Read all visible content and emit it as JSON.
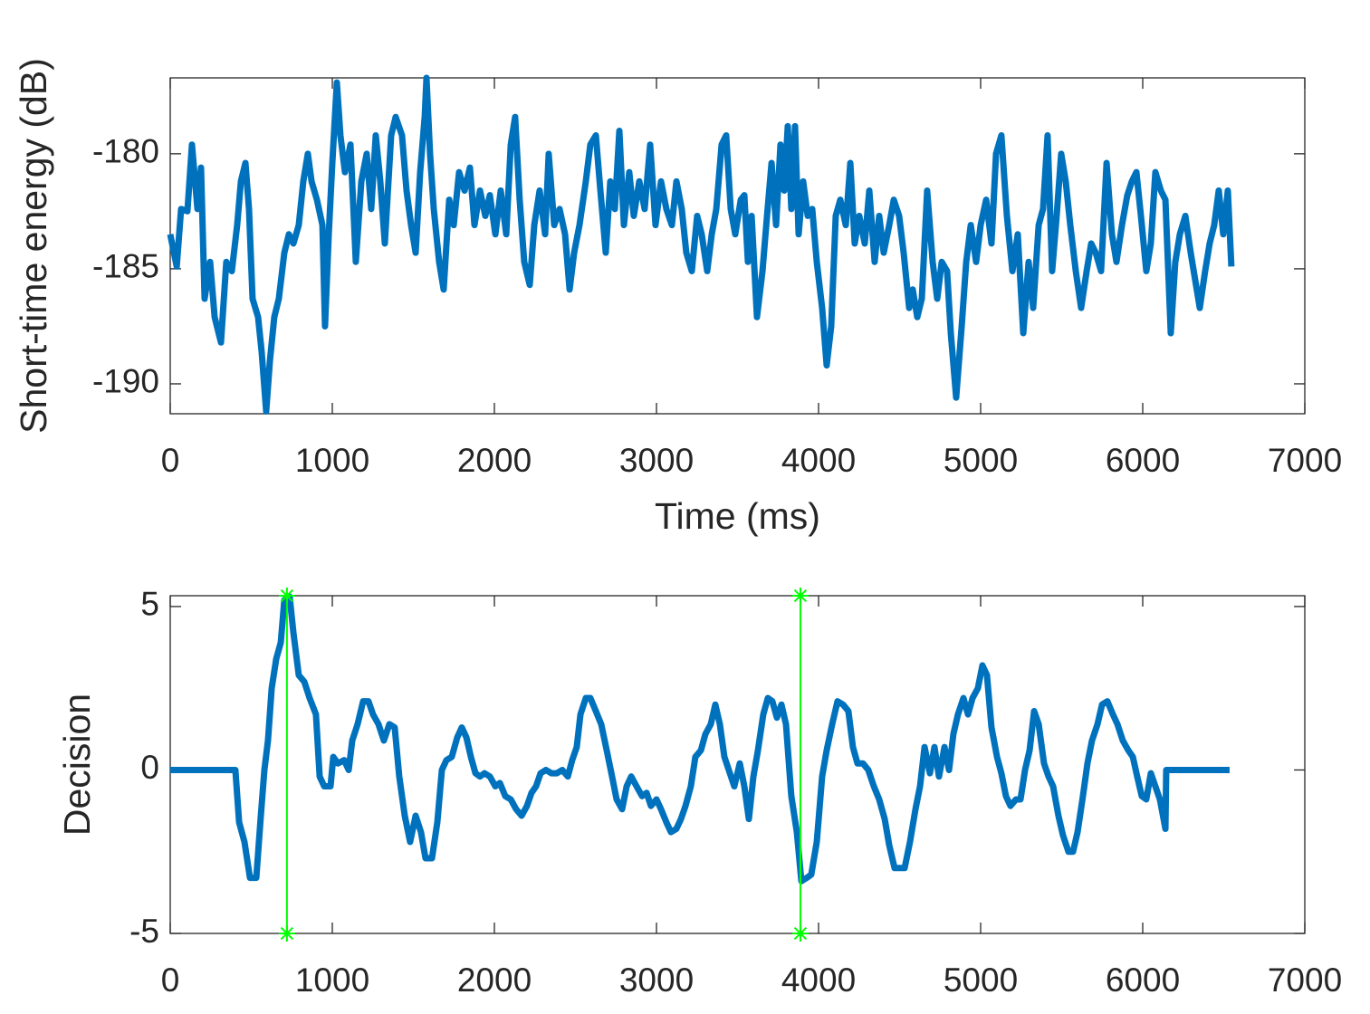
{
  "chart_data": [
    {
      "type": "line",
      "xlabel": "Time (ms)",
      "ylabel": "Short-time energy (dB)",
      "xlim": [
        0,
        7000
      ],
      "xticks": [
        0,
        1000,
        2000,
        3000,
        4000,
        5000,
        6000,
        7000
      ],
      "ylim": [
        -191.3,
        -176.7
      ],
      "yticks": [
        -190,
        -185,
        -180
      ],
      "box": true,
      "series": [
        {
          "color": "#0072bd",
          "x": [
            0,
            40,
            67,
            106,
            134,
            168,
            190,
            212,
            246,
            274,
            313,
            346,
            380,
            413,
            436,
            464,
            486,
            508,
            542,
            564,
            592,
            615,
            642,
            670,
            704,
            732,
            760,
            793,
            821,
            849,
            872,
            905,
            939,
            955,
            978,
            1000,
            1028,
            1050,
            1078,
            1112,
            1145,
            1179,
            1212,
            1240,
            1268,
            1296,
            1324,
            1363,
            1391,
            1430,
            1458,
            1486,
            1514,
            1542,
            1570,
            1581,
            1603,
            1626,
            1659,
            1687,
            1721,
            1749,
            1782,
            1816,
            1849,
            1877,
            1911,
            1944,
            1972,
            2006,
            2039,
            2073,
            2101,
            2128,
            2156,
            2184,
            2218,
            2246,
            2279,
            2313,
            2335,
            2369,
            2402,
            2436,
            2464,
            2492,
            2525,
            2564,
            2592,
            2626,
            2654,
            2687,
            2715,
            2743,
            2771,
            2799,
            2832,
            2860,
            2894,
            2927,
            2961,
            2994,
            3028,
            3061,
            3095,
            3123,
            3156,
            3184,
            3218,
            3251,
            3279,
            3313,
            3341,
            3369,
            3402,
            3430,
            3458,
            3486,
            3520,
            3542,
            3564,
            3587,
            3620,
            3654,
            3682,
            3710,
            3738,
            3765,
            3788,
            3810,
            3832,
            3855,
            3877,
            3905,
            3933,
            3961,
            3989,
            4022,
            4050,
            4078,
            4106,
            4134,
            4168,
            4196,
            4223,
            4251,
            4285,
            4313,
            4346,
            4374,
            4402,
            4436,
            4464,
            4497,
            4525,
            4559,
            4581,
            4609,
            4637,
            4670,
            4704,
            4732,
            4760,
            4793,
            4816,
            4849,
            4883,
            4911,
            4939,
            4972,
            5000,
            5034,
            5067,
            5095,
            5128,
            5162,
            5196,
            5229,
            5263,
            5296,
            5324,
            5358,
            5385,
            5413,
            5441,
            5469,
            5497,
            5525,
            5553,
            5587,
            5620,
            5654,
            5682,
            5710,
            5743,
            5777,
            5810,
            5838,
            5872,
            5905,
            5933,
            5961,
            5989,
            6022,
            6050,
            6078,
            6112,
            6140,
            6173,
            6201,
            6229,
            6263,
            6296,
            6324,
            6352,
            6385,
            6413,
            6441,
            6469,
            6497,
            6525,
            6547
          ],
          "values": [
            -183.5,
            -184.9,
            -182.4,
            -182.5,
            -179.6,
            -182.4,
            -180.6,
            -186.3,
            -184.7,
            -187.1,
            -188.2,
            -184.7,
            -185.1,
            -183.1,
            -181.2,
            -180.4,
            -182.4,
            -186.3,
            -187.1,
            -188.6,
            -191.2,
            -189.0,
            -187.1,
            -186.3,
            -184.3,
            -183.5,
            -183.9,
            -183.1,
            -181.2,
            -180.0,
            -181.2,
            -182.0,
            -183.1,
            -187.5,
            -183.5,
            -180.4,
            -176.9,
            -179.2,
            -180.8,
            -179.6,
            -184.7,
            -181.2,
            -180.0,
            -182.4,
            -179.2,
            -181.2,
            -183.9,
            -179.2,
            -178.4,
            -179.2,
            -181.6,
            -183.1,
            -184.3,
            -180.8,
            -178.4,
            -176.7,
            -180.0,
            -182.4,
            -184.7,
            -185.9,
            -182.0,
            -183.1,
            -180.8,
            -181.6,
            -180.6,
            -183.1,
            -181.6,
            -182.7,
            -181.8,
            -183.5,
            -181.6,
            -183.5,
            -179.6,
            -178.4,
            -182.0,
            -184.7,
            -185.7,
            -183.1,
            -181.6,
            -183.5,
            -180.0,
            -183.1,
            -182.4,
            -183.5,
            -185.9,
            -184.3,
            -183.1,
            -181.2,
            -179.6,
            -179.2,
            -181.6,
            -184.3,
            -181.2,
            -182.4,
            -179.0,
            -183.1,
            -180.8,
            -182.7,
            -181.2,
            -182.4,
            -179.6,
            -183.1,
            -181.2,
            -182.4,
            -183.1,
            -181.2,
            -182.4,
            -184.3,
            -185.1,
            -182.7,
            -183.5,
            -185.1,
            -183.5,
            -182.4,
            -179.6,
            -179.2,
            -182.4,
            -183.5,
            -182.0,
            -181.8,
            -184.7,
            -182.7,
            -187.1,
            -185.1,
            -182.7,
            -180.4,
            -183.1,
            -179.6,
            -181.6,
            -178.8,
            -182.4,
            -178.8,
            -183.5,
            -181.2,
            -182.7,
            -182.4,
            -184.7,
            -186.7,
            -189.2,
            -187.5,
            -182.7,
            -182.0,
            -183.1,
            -180.4,
            -183.9,
            -182.7,
            -183.9,
            -181.6,
            -184.7,
            -182.7,
            -184.3,
            -183.1,
            -182.0,
            -182.7,
            -184.3,
            -186.7,
            -185.9,
            -187.1,
            -186.3,
            -181.6,
            -184.7,
            -186.3,
            -184.7,
            -185.1,
            -187.8,
            -190.6,
            -187.5,
            -184.7,
            -183.1,
            -184.7,
            -183.1,
            -182.0,
            -183.9,
            -180.0,
            -179.2,
            -182.7,
            -185.1,
            -183.5,
            -187.8,
            -184.7,
            -186.7,
            -183.1,
            -182.4,
            -179.2,
            -185.1,
            -182.7,
            -180.0,
            -181.2,
            -183.1,
            -185.1,
            -186.7,
            -185.1,
            -183.9,
            -184.3,
            -185.1,
            -180.4,
            -183.5,
            -184.7,
            -183.1,
            -181.8,
            -181.2,
            -180.8,
            -182.7,
            -185.1,
            -183.9,
            -180.8,
            -181.6,
            -182.0,
            -187.8,
            -184.7,
            -183.5,
            -182.7,
            -184.3,
            -185.5,
            -186.7,
            -185.1,
            -183.9,
            -183.1,
            -181.6,
            -183.5,
            -181.6,
            -184.9
          ]
        }
      ]
    },
    {
      "type": "line",
      "ylabel": "Decision",
      "xlim": [
        0,
        7000
      ],
      "xticks": [
        0,
        1000,
        2000,
        3000,
        4000,
        5000,
        6000,
        7000
      ],
      "ylim": [
        -5,
        5.33
      ],
      "yticks": [
        -5,
        0,
        5
      ],
      "box": true,
      "series": [
        {
          "color": "#0072bd",
          "x": [
            0,
            402,
            425,
            458,
            492,
            531,
            559,
            581,
            603,
            626,
            654,
            682,
            704,
            737,
            760,
            793,
            827,
            860,
            899,
            922,
            950,
            989,
            1006,
            1034,
            1073,
            1101,
            1123,
            1156,
            1190,
            1223,
            1251,
            1285,
            1318,
            1352,
            1385,
            1413,
            1447,
            1480,
            1514,
            1547,
            1575,
            1615,
            1648,
            1676,
            1704,
            1737,
            1771,
            1799,
            1827,
            1855,
            1883,
            1911,
            1939,
            1972,
            2006,
            2034,
            2067,
            2101,
            2134,
            2168,
            2201,
            2229,
            2257,
            2285,
            2318,
            2352,
            2385,
            2419,
            2453,
            2480,
            2508,
            2531,
            2564,
            2592,
            2626,
            2659,
            2693,
            2726,
            2754,
            2788,
            2816,
            2844,
            2877,
            2911,
            2939,
            2966,
            3000,
            3028,
            3061,
            3089,
            3123,
            3151,
            3179,
            3212,
            3240,
            3274,
            3302,
            3335,
            3363,
            3391,
            3419,
            3453,
            3480,
            3514,
            3542,
            3570,
            3598,
            3626,
            3659,
            3687,
            3715,
            3743,
            3771,
            3799,
            3832,
            3866,
            3894,
            3927,
            3955,
            3989,
            4022,
            4050,
            4084,
            4117,
            4151,
            4184,
            4212,
            4240,
            4274,
            4307,
            4341,
            4374,
            4408,
            4436,
            4469,
            4503,
            4531,
            4564,
            4598,
            4626,
            4654,
            4687,
            4715,
            4743,
            4777,
            4805,
            4832,
            4860,
            4894,
            4922,
            4950,
            4983,
            5011,
            5039,
            5067,
            5101,
            5128,
            5156,
            5184,
            5218,
            5246,
            5274,
            5302,
            5330,
            5358,
            5391,
            5419,
            5447,
            5480,
            5508,
            5542,
            5570,
            5598,
            5631,
            5659,
            5687,
            5721,
            5749,
            5782,
            5816,
            5844,
            5877,
            5911,
            5939,
            5966,
            5994,
            6022,
            6050,
            6078,
            6106,
            6140,
            6145,
            6380,
            6536
          ],
          "values": [
            0,
            0,
            -1.6,
            -2.2,
            -3.3,
            -3.3,
            -1.4,
            0,
            0.9,
            2.5,
            3.4,
            3.9,
            5.2,
            5.3,
            4.2,
            2.9,
            2.7,
            2.2,
            1.7,
            -0.2,
            -0.5,
            -0.5,
            0.4,
            0.2,
            0.3,
            0,
            0.9,
            1.4,
            2.1,
            2.1,
            1.7,
            1.4,
            0.9,
            1.4,
            1.3,
            -0.2,
            -1.4,
            -2.2,
            -1.4,
            -1.9,
            -2.7,
            -2.7,
            -1.6,
            0,
            0.3,
            0.4,
            1.0,
            1.3,
            1.0,
            0.4,
            -0.1,
            -0.2,
            -0.1,
            -0.2,
            -0.5,
            -0.4,
            -0.8,
            -0.9,
            -1.2,
            -1.4,
            -1.1,
            -0.7,
            -0.5,
            -0.1,
            0,
            -0.1,
            -0.1,
            0,
            -0.2,
            0.3,
            0.7,
            1.7,
            2.2,
            2.2,
            1.8,
            1.4,
            0.6,
            -0.2,
            -0.9,
            -1.2,
            -0.5,
            -0.2,
            -0.5,
            -0.8,
            -0.7,
            -1.1,
            -0.9,
            -1.2,
            -1.6,
            -1.9,
            -1.8,
            -1.5,
            -1.1,
            -0.5,
            0.4,
            0.6,
            1.1,
            1.4,
            2.0,
            1.4,
            0.4,
            -0.1,
            -0.5,
            0.2,
            -0.5,
            -1.5,
            -0.2,
            0.6,
            1.7,
            2.2,
            2.1,
            1.6,
            2.0,
            1.4,
            -0.8,
            -1.9,
            -3.4,
            -3.3,
            -3.2,
            -2.2,
            -0.2,
            0.6,
            1.4,
            2.1,
            2.0,
            1.8,
            0.7,
            0.2,
            0.2,
            0,
            -0.5,
            -0.9,
            -1.5,
            -2.3,
            -3.0,
            -3.0,
            -3.0,
            -2.2,
            -1.2,
            -0.5,
            0.7,
            -0.1,
            0.7,
            -0.2,
            0.7,
            0,
            1.1,
            1.7,
            2.2,
            1.7,
            2.2,
            2.5,
            3.2,
            2.9,
            1.3,
            0.4,
            -0.1,
            -0.8,
            -1.1,
            -0.9,
            -0.9,
            0,
            0.6,
            1.8,
            1.4,
            0.2,
            -0.2,
            -0.5,
            -1.4,
            -2.0,
            -2.5,
            -2.5,
            -1.9,
            -0.8,
            0.2,
            0.9,
            1.4,
            2.0,
            2.1,
            1.7,
            1.4,
            0.9,
            0.6,
            0.4,
            -0.2,
            -0.8,
            -0.9,
            -0.1,
            -0.5,
            -0.9,
            -1.8,
            0,
            0,
            0
          ]
        },
        {
          "color": "#00ff00",
          "marker": "*",
          "x": [
            720,
            720
          ],
          "values": [
            -5,
            5.33
          ]
        },
        {
          "color": "#00ff00",
          "marker": "*",
          "x": [
            3888,
            3888
          ],
          "values": [
            -5,
            5.33
          ]
        }
      ]
    }
  ]
}
